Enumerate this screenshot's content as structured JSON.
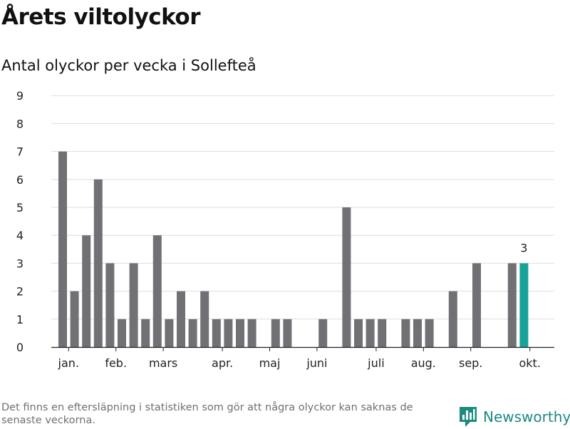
{
  "title": "Årets viltolyckor",
  "subtitle": "Antal olyckor per vecka i Sollefteå",
  "footnote": "Det finns en eftersläpning i statistiken som gör att några olyckor kan saknas de senaste veckorna.",
  "brand": {
    "name": "Newsworthy",
    "icon": "newsworthy-logo-icon",
    "color": "#1c8a7f"
  },
  "colors": {
    "bar": "#717075",
    "highlight": "#17a398",
    "grid": "#dddddd",
    "axis": "#222222"
  },
  "chart_data": {
    "type": "bar",
    "xlabel": "",
    "ylabel": "",
    "ylim": [
      0,
      9
    ],
    "yticks": [
      0,
      1,
      2,
      3,
      4,
      5,
      6,
      7,
      8,
      9
    ],
    "grid": true,
    "weeks": [
      1,
      2,
      3,
      4,
      5,
      6,
      7,
      8,
      9,
      10,
      11,
      12,
      13,
      14,
      15,
      16,
      17,
      18,
      19,
      20,
      21,
      22,
      23,
      24,
      25,
      26,
      27,
      28,
      29,
      30,
      31,
      32,
      33,
      34,
      35,
      36,
      37,
      38,
      39,
      40
    ],
    "values": [
      7,
      2,
      4,
      6,
      3,
      1,
      3,
      1,
      4,
      1,
      2,
      1,
      2,
      1,
      1,
      1,
      1,
      0,
      1,
      1,
      0,
      0,
      1,
      0,
      5,
      1,
      1,
      1,
      0,
      1,
      1,
      1,
      0,
      2,
      0,
      3,
      0,
      0,
      3,
      3
    ],
    "highlight_index": 39,
    "highlight_label": "3",
    "month_ticks": [
      {
        "label": "jan.",
        "week": 1.5
      },
      {
        "label": "feb.",
        "week": 5.5
      },
      {
        "label": "mars",
        "week": 9.5
      },
      {
        "label": "apr.",
        "week": 14.5
      },
      {
        "label": "maj",
        "week": 18.5
      },
      {
        "label": "juni",
        "week": 22.5
      },
      {
        "label": "juli",
        "week": 27.5
      },
      {
        "label": "aug.",
        "week": 31.5
      },
      {
        "label": "sep.",
        "week": 35.5
      },
      {
        "label": "okt.",
        "week": 40.5
      }
    ]
  }
}
